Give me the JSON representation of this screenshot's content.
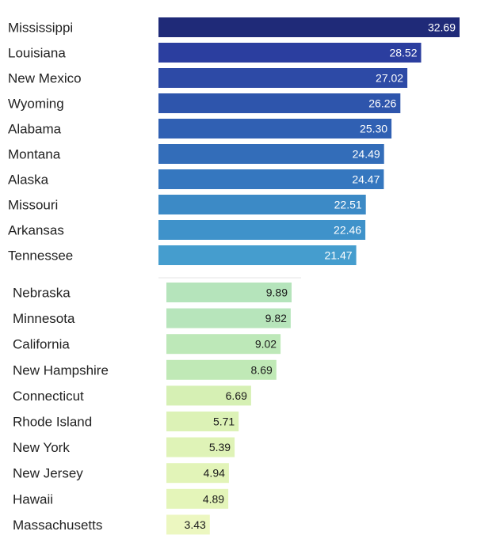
{
  "chart_data": [
    {
      "type": "bar",
      "orientation": "horizontal",
      "title": "",
      "xlabel": "",
      "ylabel": "",
      "categories": [
        "Mississippi",
        "Louisiana",
        "New Mexico",
        "Wyoming",
        "Alabama",
        "Montana",
        "Alaska",
        "Missouri",
        "Arkansas",
        "Tennessee"
      ],
      "values": [
        32.69,
        28.52,
        27.02,
        26.26,
        25.3,
        24.49,
        24.47,
        22.51,
        22.46,
        21.47
      ],
      "value_labels": [
        "32.69",
        "28.52",
        "27.02",
        "26.26",
        "25.30",
        "24.49",
        "24.47",
        "22.51",
        "22.46",
        "21.47"
      ],
      "colors": [
        "#1f2a78",
        "#2b3e9f",
        "#2d4aa6",
        "#2e55ac",
        "#3060b3",
        "#336db9",
        "#3577bf",
        "#3c8ac6",
        "#3f92ca",
        "#459dce"
      ],
      "xlim": [
        0,
        32.69
      ],
      "grid": false,
      "legend": "none"
    },
    {
      "type": "bar",
      "orientation": "horizontal",
      "title": "",
      "xlabel": "",
      "ylabel": "",
      "categories": [
        "Nebraska",
        "Minnesota",
        "California",
        "New Hampshire",
        "Connecticut",
        "Rhode Island",
        "New York",
        "New Jersey",
        "Hawaii",
        "Massachusetts"
      ],
      "values": [
        9.89,
        9.82,
        9.02,
        8.69,
        6.69,
        5.71,
        5.39,
        4.94,
        4.89,
        3.43
      ],
      "value_labels": [
        "9.89",
        "9.82",
        "9.02",
        "8.69",
        "6.69",
        "5.71",
        "5.39",
        "4.94",
        "4.89",
        "3.43"
      ],
      "colors": [
        "#b5e4bb",
        "#b7e5bb",
        "#bde8b8",
        "#c0e9b6",
        "#d6f0b4",
        "#dcf2b6",
        "#dff3b7",
        "#e2f4b8",
        "#e4f5b9",
        "#ecf7c0"
      ],
      "xlim": [
        0,
        9.89
      ],
      "grid": false,
      "legend": "none"
    }
  ]
}
